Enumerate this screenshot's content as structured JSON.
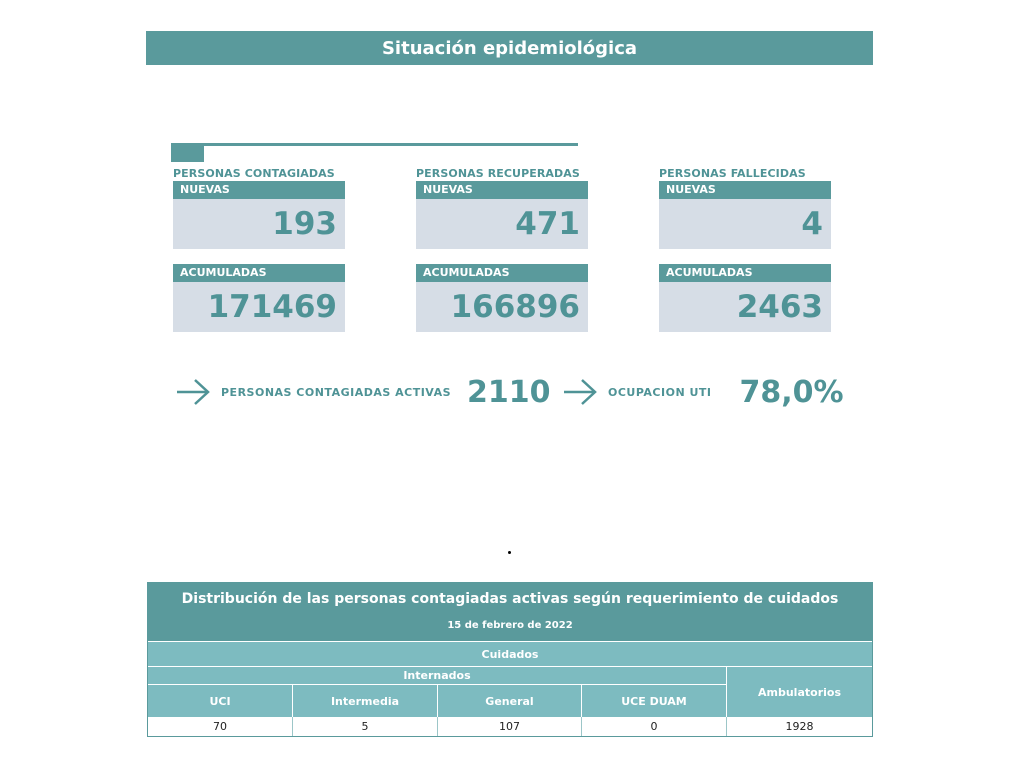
{
  "header": {
    "title": "Situación epidemiológica"
  },
  "stats": [
    {
      "label": "PERSONAS CONTAGIADAS",
      "nuevas_label": "NUEVAS",
      "nuevas": "193",
      "acumuladas_label": "ACUMULADAS",
      "acumuladas": "171469"
    },
    {
      "label": "PERSONAS RECUPERADAS",
      "nuevas_label": "NUEVAS",
      "nuevas": "471",
      "acumuladas_label": "ACUMULADAS",
      "acumuladas": "166896"
    },
    {
      "label": "PERSONAS FALLECIDAS",
      "nuevas_label": "NUEVAS",
      "nuevas": "4",
      "acumuladas_label": "ACUMULADAS",
      "acumuladas": "2463"
    }
  ],
  "indicators": [
    {
      "label": "PERSONAS CONTAGIADAS ACTIVAS",
      "value": "2110",
      "icon": "arrow-right-icon"
    },
    {
      "label": "OCUPACION UTI",
      "value": "78,0%",
      "icon": "arrow-right-icon"
    }
  ],
  "table": {
    "title": "Distribución de las personas contagiadas activas según requerimiento de cuidados",
    "date": "15 de febrero de 2022",
    "cuidados": "Cuidados",
    "internados": "Internados",
    "columns": [
      "UCI",
      "Intermedia",
      "General",
      "UCE DUAM"
    ],
    "ambulatorios": "Ambulatorios",
    "values": [
      "70",
      "5",
      "107",
      "0",
      "1928"
    ]
  },
  "colors": {
    "primary": "#5a9a9c",
    "light": "#7dbbc0",
    "cell_bg": "#d6dde6"
  }
}
